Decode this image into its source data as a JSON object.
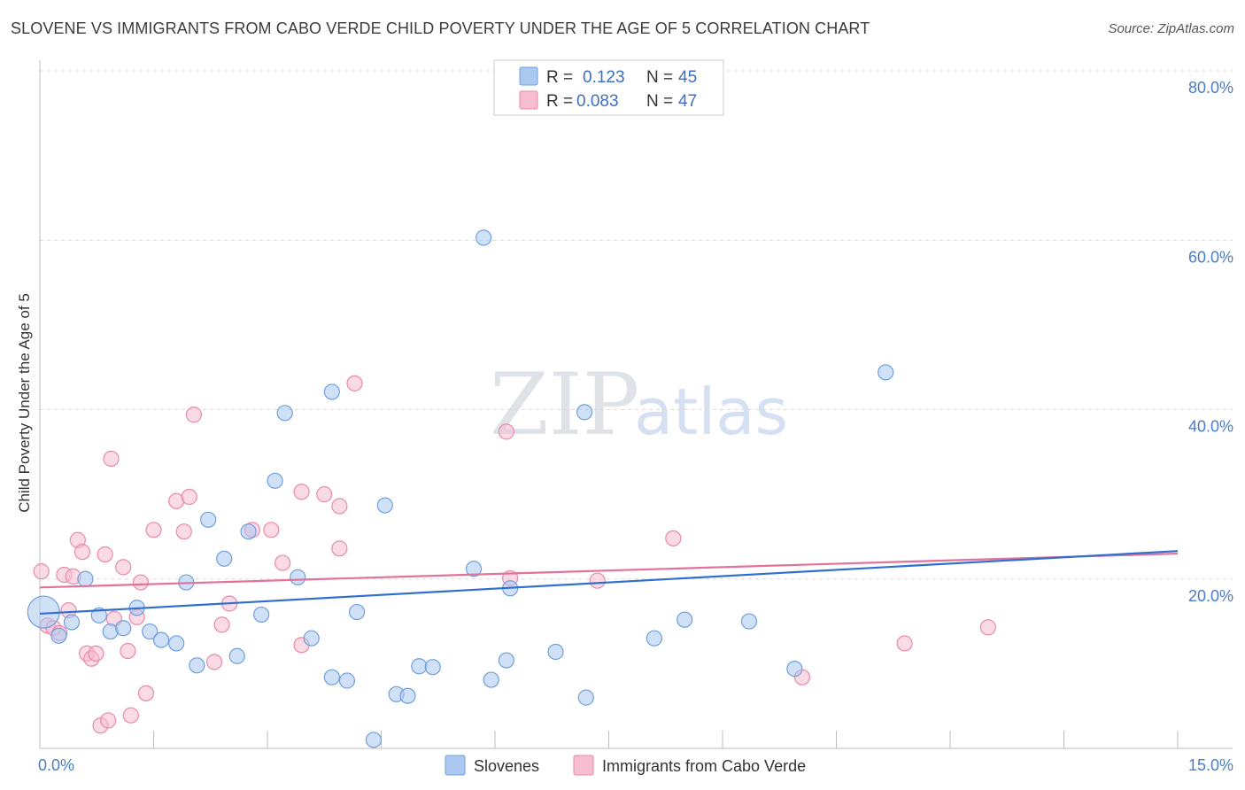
{
  "title": "SLOVENE VS IMMIGRANTS FROM CABO VERDE CHILD POVERTY UNDER THE AGE OF 5 CORRELATION CHART",
  "source": "Source: ZipAtlas.com",
  "watermark": {
    "part1": "ZIP",
    "part2": "atlas"
  },
  "colors": {
    "slovenes_fill": "#aac8f0",
    "slovenes_stroke": "#6f9fdc",
    "slovenes_line": "#2f6fd0",
    "cabo_fill": "#f6bcd0",
    "cabo_stroke": "#e88aa9",
    "cabo_line": "#e3719a",
    "tick_text": "#4a7cc8",
    "grid": "#d9d9d9"
  },
  "legend": {
    "r_label": "R =",
    "n_label": "N =",
    "slovenes": {
      "r": "0.123",
      "n": "45"
    },
    "cabo": {
      "r": "0.083",
      "n": "47"
    }
  },
  "chart_data": {
    "type": "scatter",
    "xlabel": "",
    "ylabel": "Child Poverty Under the Age of 5",
    "xlim": [
      0,
      15
    ],
    "ylim": [
      0,
      80
    ],
    "x_tick_labels": [
      "0.0%",
      "15.0%"
    ],
    "y_ticks": [
      20,
      40,
      60,
      80
    ],
    "y_tick_labels": [
      "20.0%",
      "40.0%",
      "60.0%",
      "80.0%"
    ],
    "grid": true,
    "legend_position": "top-center",
    "series": [
      {
        "name": "Slovenes",
        "trend": {
          "x": [
            0,
            15
          ],
          "y": [
            15.9,
            23.3
          ]
        },
        "points": [
          {
            "x": 0.05,
            "y": 16.1,
            "big": true
          },
          {
            "x": 0.25,
            "y": 13.3
          },
          {
            "x": 0.42,
            "y": 14.9
          },
          {
            "x": 0.6,
            "y": 20.0
          },
          {
            "x": 0.78,
            "y": 15.7
          },
          {
            "x": 0.93,
            "y": 13.8
          },
          {
            "x": 1.1,
            "y": 14.2
          },
          {
            "x": 1.28,
            "y": 16.6
          },
          {
            "x": 1.45,
            "y": 13.8
          },
          {
            "x": 1.6,
            "y": 12.8
          },
          {
            "x": 1.8,
            "y": 12.4
          },
          {
            "x": 1.93,
            "y": 19.6
          },
          {
            "x": 2.07,
            "y": 9.8
          },
          {
            "x": 2.22,
            "y": 27.0
          },
          {
            "x": 2.43,
            "y": 22.4
          },
          {
            "x": 2.6,
            "y": 10.9
          },
          {
            "x": 2.75,
            "y": 25.6
          },
          {
            "x": 2.92,
            "y": 15.8
          },
          {
            "x": 3.1,
            "y": 31.6
          },
          {
            "x": 3.23,
            "y": 39.6
          },
          {
            "x": 3.4,
            "y": 20.2
          },
          {
            "x": 3.58,
            "y": 13.0
          },
          {
            "x": 3.85,
            "y": 42.1
          },
          {
            "x": 3.85,
            "y": 8.4
          },
          {
            "x": 4.05,
            "y": 8.0
          },
          {
            "x": 4.18,
            "y": 16.1
          },
          {
            "x": 4.4,
            "y": 1.0
          },
          {
            "x": 4.55,
            "y": 28.7
          },
          {
            "x": 4.7,
            "y": 6.4
          },
          {
            "x": 4.85,
            "y": 6.2
          },
          {
            "x": 5.0,
            "y": 9.7
          },
          {
            "x": 5.18,
            "y": 9.6
          },
          {
            "x": 5.72,
            "y": 21.2
          },
          {
            "x": 5.85,
            "y": 60.3
          },
          {
            "x": 5.95,
            "y": 8.1
          },
          {
            "x": 6.15,
            "y": 10.4
          },
          {
            "x": 6.2,
            "y": 18.9
          },
          {
            "x": 6.8,
            "y": 11.4
          },
          {
            "x": 7.18,
            "y": 39.7
          },
          {
            "x": 7.2,
            "y": 6.0
          },
          {
            "x": 8.1,
            "y": 13.0
          },
          {
            "x": 8.5,
            "y": 15.2
          },
          {
            "x": 9.35,
            "y": 15.0
          },
          {
            "x": 9.95,
            "y": 9.4
          },
          {
            "x": 11.15,
            "y": 44.4
          }
        ]
      },
      {
        "name": "Immigrants from Cabo Verde",
        "trend": {
          "x": [
            0,
            15
          ],
          "y": [
            19.0,
            23.0
          ]
        },
        "points": [
          {
            "x": 0.02,
            "y": 20.9
          },
          {
            "x": 0.1,
            "y": 14.5
          },
          {
            "x": 0.18,
            "y": 14.2
          },
          {
            "x": 0.26,
            "y": 13.6
          },
          {
            "x": 0.32,
            "y": 20.5
          },
          {
            "x": 0.38,
            "y": 16.3
          },
          {
            "x": 0.44,
            "y": 20.3
          },
          {
            "x": 0.5,
            "y": 24.6
          },
          {
            "x": 0.56,
            "y": 23.2
          },
          {
            "x": 0.62,
            "y": 11.2
          },
          {
            "x": 0.68,
            "y": 10.6
          },
          {
            "x": 0.74,
            "y": 11.2
          },
          {
            "x": 0.8,
            "y": 2.7
          },
          {
            "x": 0.86,
            "y": 22.9
          },
          {
            "x": 0.9,
            "y": 3.3
          },
          {
            "x": 0.94,
            "y": 34.2
          },
          {
            "x": 0.98,
            "y": 15.3
          },
          {
            "x": 1.1,
            "y": 21.4
          },
          {
            "x": 1.16,
            "y": 11.5
          },
          {
            "x": 1.2,
            "y": 3.9
          },
          {
            "x": 1.28,
            "y": 15.5
          },
          {
            "x": 1.33,
            "y": 19.6
          },
          {
            "x": 1.4,
            "y": 6.5
          },
          {
            "x": 1.5,
            "y": 25.8
          },
          {
            "x": 1.8,
            "y": 29.2
          },
          {
            "x": 1.9,
            "y": 25.6
          },
          {
            "x": 1.97,
            "y": 29.7
          },
          {
            "x": 2.03,
            "y": 39.4
          },
          {
            "x": 2.3,
            "y": 10.2
          },
          {
            "x": 2.4,
            "y": 14.6
          },
          {
            "x": 2.5,
            "y": 17.1
          },
          {
            "x": 2.8,
            "y": 25.8
          },
          {
            "x": 3.05,
            "y": 25.8
          },
          {
            "x": 3.2,
            "y": 21.9
          },
          {
            "x": 3.45,
            "y": 30.3
          },
          {
            "x": 3.45,
            "y": 12.2
          },
          {
            "x": 3.75,
            "y": 30.0
          },
          {
            "x": 3.95,
            "y": 28.6
          },
          {
            "x": 3.95,
            "y": 23.6
          },
          {
            "x": 4.15,
            "y": 43.1
          },
          {
            "x": 6.15,
            "y": 37.4
          },
          {
            "x": 6.2,
            "y": 20.1
          },
          {
            "x": 7.35,
            "y": 19.8
          },
          {
            "x": 8.35,
            "y": 24.8
          },
          {
            "x": 10.05,
            "y": 8.4
          },
          {
            "x": 11.4,
            "y": 12.4
          },
          {
            "x": 12.5,
            "y": 14.3
          }
        ]
      }
    ]
  }
}
